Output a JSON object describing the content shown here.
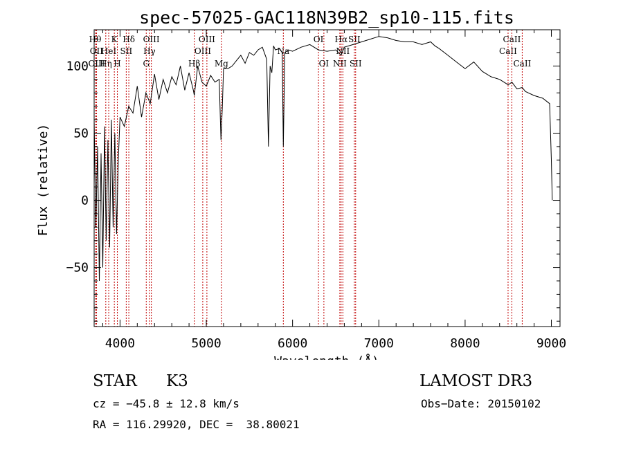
{
  "chart_data": {
    "type": "line",
    "title": "spec-57025-GAC118N39B2_sp10-115.fits",
    "xlabel": "Wavelength (Å)",
    "ylabel": "Flux (relative)",
    "xlim": [
      3700,
      9100
    ],
    "ylim": [
      -94,
      127
    ],
    "x_ticks": [
      4000,
      5000,
      6000,
      7000,
      8000,
      9000
    ],
    "y_ticks": [
      -50,
      0,
      50,
      100
    ],
    "x_tick_labels": [
      "4000",
      "5000",
      "6000",
      "7000",
      "8000",
      "9000"
    ],
    "y_tick_labels": [
      "−50",
      "0",
      "50",
      "100"
    ],
    "series": [
      {
        "name": "spectrum",
        "x": [
          3700,
          3720,
          3740,
          3760,
          3780,
          3800,
          3820,
          3840,
          3860,
          3880,
          3900,
          3920,
          3940,
          3960,
          3980,
          4000,
          4050,
          4100,
          4150,
          4200,
          4250,
          4300,
          4350,
          4400,
          4450,
          4500,
          4550,
          4600,
          4650,
          4700,
          4750,
          4800,
          4850,
          4861,
          4900,
          4950,
          5000,
          5050,
          5100,
          5150,
          5170,
          5185,
          5200,
          5250,
          5300,
          5350,
          5400,
          5450,
          5500,
          5550,
          5600,
          5650,
          5700,
          5720,
          5740,
          5760,
          5780,
          5800,
          5850,
          5880,
          5893,
          5910,
          5950,
          6000,
          6100,
          6200,
          6300,
          6400,
          6500,
          6563,
          6600,
          6700,
          6800,
          6900,
          7000,
          7100,
          7200,
          7300,
          7400,
          7500,
          7600,
          7650,
          7700,
          7800,
          7900,
          8000,
          8100,
          8200,
          8300,
          8400,
          8500,
          8542,
          8600,
          8662,
          8700,
          8800,
          8900,
          8980,
          9000,
          9010
        ],
        "y": [
          60,
          -20,
          40,
          -60,
          35,
          -50,
          55,
          -30,
          45,
          -35,
          60,
          -20,
          50,
          -25,
          30,
          62,
          55,
          70,
          65,
          85,
          62,
          80,
          72,
          94,
          75,
          90,
          80,
          92,
          86,
          100,
          82,
          95,
          82,
          78,
          100,
          88,
          85,
          93,
          88,
          90,
          45,
          68,
          98,
          98,
          100,
          104,
          108,
          102,
          110,
          108,
          112,
          114,
          105,
          40,
          100,
          95,
          115,
          112,
          113,
          110,
          40,
          110,
          112,
          111,
          114,
          116,
          112,
          111,
          112,
          108,
          114,
          116,
          118,
          120,
          122,
          121,
          119,
          118,
          118,
          116,
          118,
          115,
          113,
          108,
          103,
          98,
          103,
          96,
          92,
          90,
          86,
          88,
          83,
          84,
          81,
          78,
          76,
          72,
          30,
          0
        ]
      }
    ],
    "lines": [
      {
        "wave": 3712,
        "text": "Hθ",
        "row": 1
      },
      {
        "wave": 3727,
        "text": "OII",
        "row": 2
      },
      {
        "wave": 3728,
        "text": "OIII",
        "row": 3
      },
      {
        "wave": 3835,
        "text": "Hη",
        "row": 3
      },
      {
        "wave": 3869,
        "text": "HeI",
        "row": 2
      },
      {
        "wave": 3934,
        "text": "K",
        "row": 1
      },
      {
        "wave": 3969,
        "text": "H",
        "row": 3
      },
      {
        "wave": 4072,
        "text": "SII",
        "row": 2
      },
      {
        "wave": 4102,
        "text": "Hδ",
        "row": 1
      },
      {
        "wave": 4304,
        "text": "G",
        "row": 3
      },
      {
        "wave": 4341,
        "text": "Hγ",
        "row": 2
      },
      {
        "wave": 4363,
        "text": "OIII",
        "row": 1
      },
      {
        "wave": 4861,
        "text": "Hβ",
        "row": 3
      },
      {
        "wave": 4959,
        "text": "OIII",
        "row": 2
      },
      {
        "wave": 5007,
        "text": "OIII",
        "row": 1
      },
      {
        "wave": 5175,
        "text": "Mg",
        "row": 3
      },
      {
        "wave": 5893,
        "text": "Na",
        "row": 2
      },
      {
        "wave": 6300,
        "text": "OI",
        "row": 1
      },
      {
        "wave": 6363,
        "text": "OI",
        "row": 3
      },
      {
        "wave": 6548,
        "text": "NII",
        "row": 3
      },
      {
        "wave": 6563,
        "text": "Hα",
        "row": 1
      },
      {
        "wave": 6583,
        "text": "NII",
        "row": 2
      },
      {
        "wave": 6716,
        "text": "SII",
        "row": 1
      },
      {
        "wave": 6731,
        "text": "SII",
        "row": 3
      },
      {
        "wave": 8498,
        "text": "CaII",
        "row": 2
      },
      {
        "wave": 8542,
        "text": "CaII",
        "row": 1
      },
      {
        "wave": 8662,
        "text": "CaII",
        "row": 3
      }
    ]
  },
  "footer": {
    "object_class": "STAR",
    "subclass": "K3",
    "survey": "LAMOST DR3",
    "cz": "cz = −45.8 ± 12.8 km/s",
    "obs_date": "Obs−Date: 20150102",
    "coords": "RA = 116.29920, DEC =  38.80021"
  }
}
